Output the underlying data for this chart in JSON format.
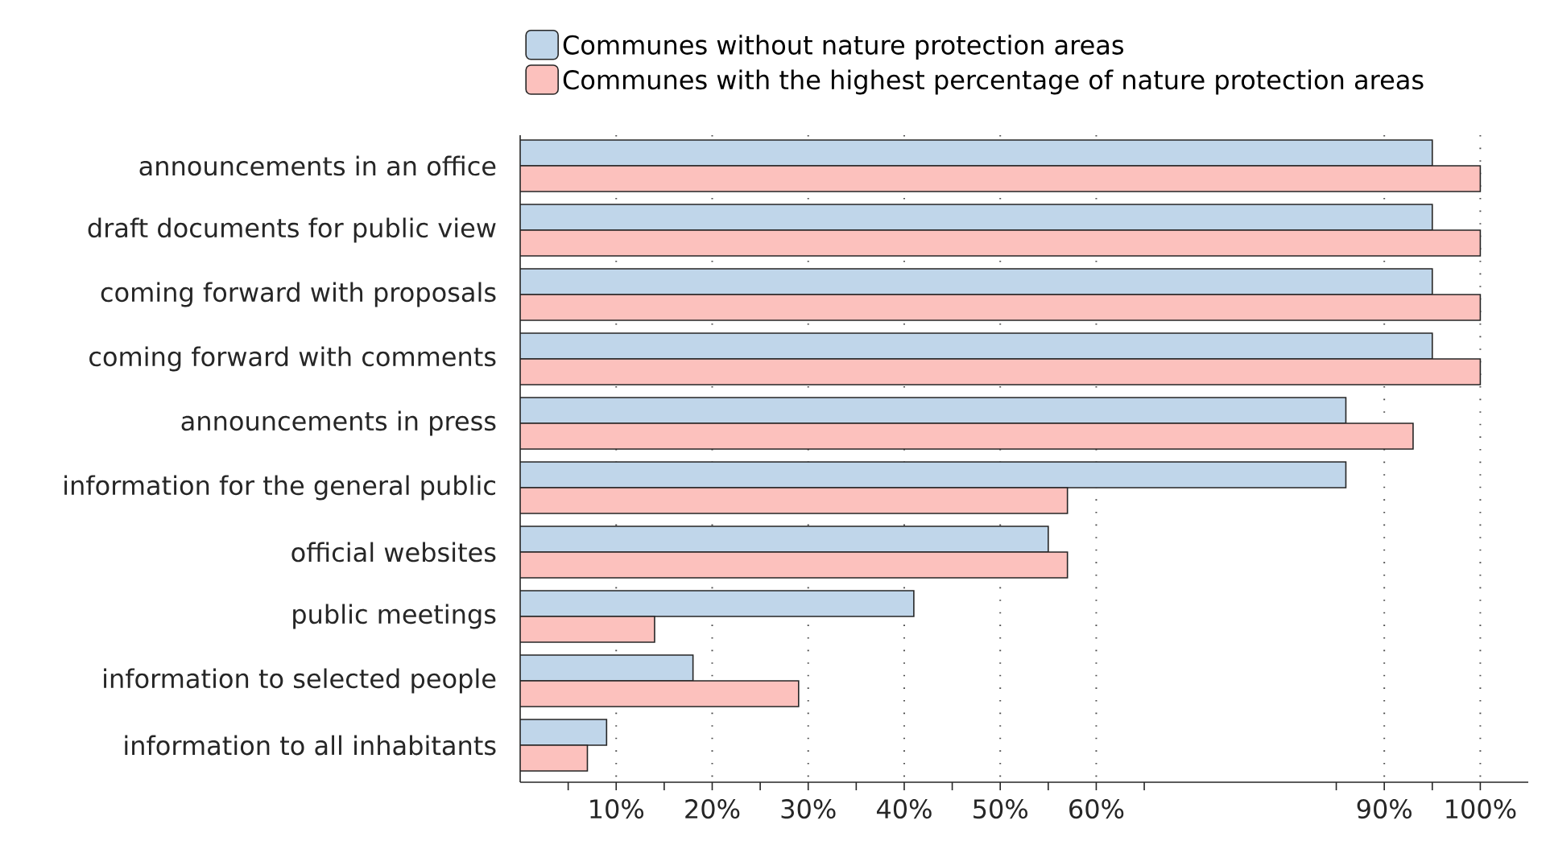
{
  "chart_data": {
    "type": "bar",
    "orientation": "horizontal",
    "categories": [
      "announcements in an office",
      "draft documents for public view",
      "coming forward with proposals",
      "coming forward with comments",
      "announcements in press",
      "information for the general public",
      "official websites",
      "public meetings",
      "information to selected people",
      "information to all inhabitants"
    ],
    "series": [
      {
        "name": "Communes without nature protection areas",
        "color": "#c0d6ea",
        "values": [
          95,
          95,
          95,
          95,
          86,
          86,
          55,
          41,
          18,
          9
        ]
      },
      {
        "name": "Communes with the highest percentage of nature protection areas",
        "color": "#fcc1bd",
        "values": [
          100,
          100,
          100,
          100,
          93,
          57,
          57,
          14,
          29,
          7
        ]
      }
    ],
    "xlim": [
      0,
      105
    ],
    "xticks": [
      {
        "value": 5,
        "label": null
      },
      {
        "value": 10,
        "label": "10%"
      },
      {
        "value": 15,
        "label": null
      },
      {
        "value": 20,
        "label": "20%"
      },
      {
        "value": 25,
        "label": null
      },
      {
        "value": 30,
        "label": "30%"
      },
      {
        "value": 35,
        "label": null
      },
      {
        "value": 40,
        "label": "40%"
      },
      {
        "value": 45,
        "label": null
      },
      {
        "value": 50,
        "label": "50%"
      },
      {
        "value": 55,
        "label": null
      },
      {
        "value": 60,
        "label": "60%"
      },
      {
        "value": 65,
        "label": null
      },
      {
        "value": 85,
        "label": null
      },
      {
        "value": 90,
        "label": "90%"
      },
      {
        "value": 95,
        "label": null
      },
      {
        "value": 100,
        "label": "100%"
      }
    ],
    "grid": "x",
    "legend": "top"
  }
}
